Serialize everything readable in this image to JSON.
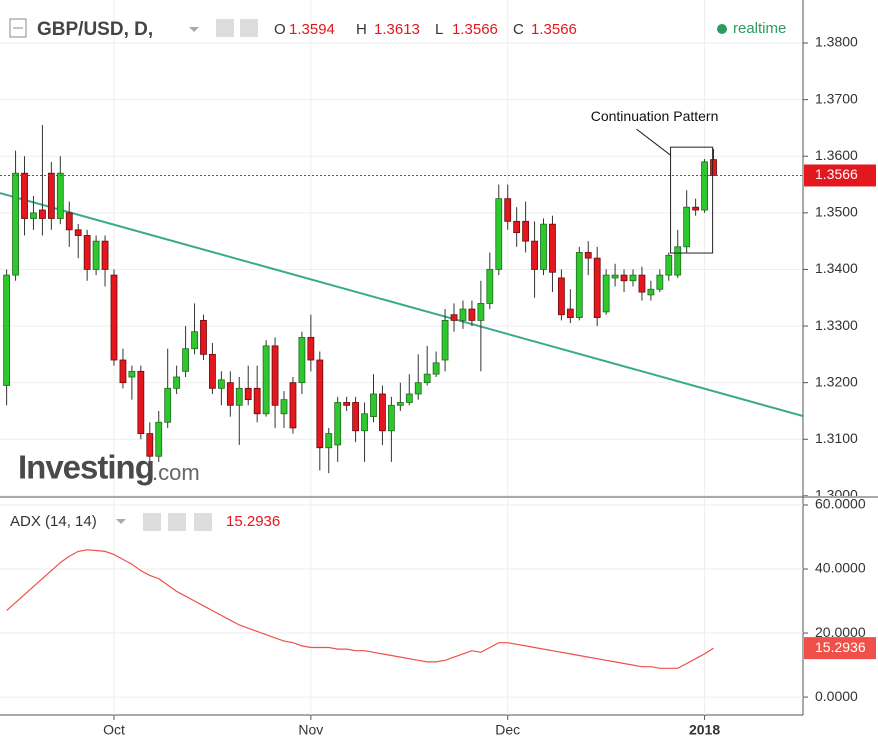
{
  "chart_data": [
    {
      "type": "candlestick",
      "title": "GBP/USD, D,",
      "ohlc_labels": [
        "O",
        "H",
        "L",
        "C"
      ],
      "status": "realtime",
      "watermark": {
        "brand": "Investing",
        "suffix": ".com"
      },
      "x": [
        0,
        1,
        2,
        3,
        4,
        5,
        6,
        7,
        8,
        9,
        10,
        11,
        12,
        13,
        14,
        15,
        16,
        17,
        18,
        19,
        20,
        21,
        22,
        23,
        24,
        25,
        26,
        27,
        28,
        29,
        30,
        31,
        32,
        33,
        34,
        35,
        36,
        37,
        38,
        39,
        40,
        41,
        42,
        43,
        44,
        45,
        46,
        47,
        48,
        49,
        50,
        51,
        52,
        53,
        54,
        55,
        56,
        57,
        58,
        59,
        60,
        61,
        62,
        63,
        64,
        65,
        66,
        67,
        68,
        69,
        70,
        71,
        72,
        73,
        74,
        75,
        76,
        77,
        78,
        79
      ],
      "open": [
        1.3195,
        1.339,
        1.357,
        1.349,
        1.3505,
        1.357,
        1.349,
        1.35,
        1.347,
        1.346,
        1.34,
        1.345,
        1.339,
        1.324,
        1.321,
        1.322,
        1.311,
        1.307,
        1.313,
        1.319,
        1.322,
        1.326,
        1.331,
        1.325,
        1.319,
        1.32,
        1.316,
        1.319,
        1.319,
        1.3145,
        1.3265,
        1.3145,
        1.32,
        1.32,
        1.328,
        1.324,
        1.3085,
        1.309,
        1.3165,
        1.3165,
        1.3115,
        1.314,
        1.318,
        1.3115,
        1.316,
        1.3165,
        1.318,
        1.32,
        1.3215,
        1.324,
        1.332,
        1.331,
        1.333,
        1.331,
        1.334,
        1.34,
        1.3525,
        1.3485,
        1.3485,
        1.345,
        1.34,
        1.348,
        1.3385,
        1.333,
        1.3315,
        1.343,
        1.342,
        1.3325,
        1.3385,
        1.339,
        1.338,
        1.339,
        1.3355,
        1.3365,
        1.339,
        1.339,
        1.344,
        1.351,
        1.3505,
        1.3594
      ],
      "high": [
        1.34,
        1.361,
        1.36,
        1.353,
        1.3655,
        1.359,
        1.36,
        1.352,
        1.348,
        1.347,
        1.346,
        1.346,
        1.34,
        1.326,
        1.323,
        1.323,
        1.313,
        1.315,
        1.326,
        1.323,
        1.33,
        1.334,
        1.332,
        1.327,
        1.322,
        1.322,
        1.321,
        1.323,
        1.323,
        1.3275,
        1.328,
        1.3185,
        1.321,
        1.329,
        1.332,
        1.3255,
        1.312,
        1.3175,
        1.3175,
        1.3175,
        1.3165,
        1.3215,
        1.3195,
        1.3175,
        1.32,
        1.3215,
        1.325,
        1.3265,
        1.3255,
        1.333,
        1.334,
        1.3345,
        1.3345,
        1.338,
        1.343,
        1.355,
        1.355,
        1.351,
        1.352,
        1.3485,
        1.349,
        1.3495,
        1.34,
        1.3365,
        1.344,
        1.345,
        1.344,
        1.34,
        1.341,
        1.34,
        1.34,
        1.3405,
        1.338,
        1.34,
        1.343,
        1.347,
        1.354,
        1.3525,
        1.3595,
        1.3613
      ],
      "low": [
        1.316,
        1.338,
        1.346,
        1.347,
        1.346,
        1.347,
        1.348,
        1.344,
        1.342,
        1.338,
        1.339,
        1.337,
        1.323,
        1.319,
        1.317,
        1.31,
        1.3055,
        1.306,
        1.312,
        1.318,
        1.321,
        1.325,
        1.324,
        1.318,
        1.316,
        1.314,
        1.309,
        1.316,
        1.313,
        1.314,
        1.312,
        1.312,
        1.311,
        1.318,
        1.322,
        1.3045,
        1.304,
        1.306,
        1.315,
        1.3095,
        1.306,
        1.313,
        1.309,
        1.306,
        1.315,
        1.316,
        1.317,
        1.3195,
        1.321,
        1.322,
        1.329,
        1.3295,
        1.33,
        1.322,
        1.333,
        1.339,
        1.347,
        1.344,
        1.343,
        1.335,
        1.339,
        1.336,
        1.331,
        1.3305,
        1.331,
        1.339,
        1.33,
        1.332,
        1.337,
        1.336,
        1.337,
        1.3345,
        1.3345,
        1.336,
        1.338,
        1.3385,
        1.343,
        1.3495,
        1.35,
        1.3566
      ],
      "close": [
        1.339,
        1.357,
        1.349,
        1.35,
        1.349,
        1.349,
        1.357,
        1.347,
        1.346,
        1.34,
        1.345,
        1.34,
        1.324,
        1.32,
        1.322,
        1.311,
        1.307,
        1.313,
        1.319,
        1.321,
        1.326,
        1.329,
        1.325,
        1.319,
        1.3205,
        1.316,
        1.319,
        1.317,
        1.3145,
        1.3265,
        1.316,
        1.317,
        1.312,
        1.328,
        1.324,
        1.3085,
        1.311,
        1.3165,
        1.316,
        1.3115,
        1.3145,
        1.318,
        1.3115,
        1.316,
        1.3165,
        1.318,
        1.32,
        1.3215,
        1.3235,
        1.331,
        1.331,
        1.333,
        1.331,
        1.334,
        1.34,
        1.3525,
        1.3485,
        1.3465,
        1.345,
        1.34,
        1.348,
        1.3395,
        1.332,
        1.3315,
        1.343,
        1.342,
        1.3315,
        1.339,
        1.339,
        1.338,
        1.339,
        1.336,
        1.3365,
        1.339,
        1.3425,
        1.344,
        1.351,
        1.3505,
        1.359,
        1.3566
      ],
      "up_color": "#2ec82e",
      "down_color": "#e3171d",
      "wick_color": "#333333",
      "last_price_color": "#e3171d",
      "xlim": [
        -0.74,
        89
      ],
      "xticks": [
        {
          "value": 12,
          "label": "Oct"
        },
        {
          "value": 34,
          "label": "Nov"
        },
        {
          "value": 56,
          "label": "Dec"
        },
        {
          "value": 78,
          "label": "2018"
        }
      ],
      "ylim": [
        1.2998,
        1.3876
      ],
      "yticks": [
        {
          "value": 1.3,
          "label": "1.3000"
        },
        {
          "value": 1.31,
          "label": "1.3100"
        },
        {
          "value": 1.32,
          "label": "1.3200"
        },
        {
          "value": 1.33,
          "label": "1.3300"
        },
        {
          "value": 1.34,
          "label": "1.3400"
        },
        {
          "value": 1.35,
          "label": "1.3500"
        },
        {
          "value": 1.36,
          "label": "1.3600"
        },
        {
          "value": 1.37,
          "label": "1.3700"
        },
        {
          "value": 1.38,
          "label": "1.3800"
        }
      ],
      "grid": true,
      "trendline": {
        "x": [
          -0.74,
          89
        ],
        "y": [
          1.3535,
          1.3141
        ],
        "color": "#3aaa8c"
      },
      "annotation": {
        "text": "Continuation Pattern",
        "x": [
          74.2,
          78.9
        ],
        "y": [
          1.3429,
          1.3616
        ]
      }
    },
    {
      "type": "line",
      "title": "ADX (14, 14)",
      "color": "#f0504a",
      "x": [
        0,
        1,
        2,
        3,
        4,
        5,
        6,
        7,
        8,
        9,
        10,
        11,
        12,
        13,
        14,
        15,
        16,
        17,
        18,
        19,
        20,
        21,
        22,
        23,
        24,
        25,
        26,
        27,
        28,
        29,
        30,
        31,
        32,
        33,
        34,
        35,
        36,
        37,
        38,
        39,
        40,
        41,
        42,
        43,
        44,
        45,
        46,
        47,
        48,
        49,
        50,
        51,
        52,
        53,
        54,
        55,
        56,
        57,
        58,
        59,
        60,
        61,
        62,
        63,
        64,
        65,
        66,
        67,
        68,
        69,
        70,
        71,
        72,
        73,
        74,
        75,
        76,
        77,
        78,
        79
      ],
      "values": [
        27,
        29.5,
        32,
        34.5,
        37,
        39.5,
        42,
        44,
        45.5,
        46,
        45.8,
        45.5,
        44.5,
        43,
        41.5,
        39.5,
        38,
        37,
        35,
        33,
        31.5,
        30,
        28.5,
        27,
        25.5,
        24,
        22.5,
        21.5,
        20.5,
        19.5,
        18.5,
        17.5,
        17,
        16,
        15.5,
        15.5,
        15.5,
        15,
        15,
        14.5,
        14.5,
        14,
        13.5,
        13,
        12.5,
        12,
        11.5,
        11,
        11,
        11.5,
        12.5,
        13.5,
        14.5,
        14,
        15.5,
        17,
        17,
        16.5,
        16,
        15.5,
        15,
        14.5,
        14,
        13.5,
        13,
        12.5,
        12,
        11.5,
        11,
        10.5,
        10,
        9.5,
        9.5,
        9,
        9,
        9,
        10.5,
        12,
        13.5,
        15.2936
      ],
      "ylim": [
        -5.6,
        62.5
      ],
      "yticks": [
        {
          "value": 0,
          "label": "0.0000"
        },
        {
          "value": 20,
          "label": "20.0000"
        },
        {
          "value": 40,
          "label": "40.0000"
        },
        {
          "value": 60,
          "label": "60.0000"
        }
      ],
      "grid": true
    }
  ]
}
